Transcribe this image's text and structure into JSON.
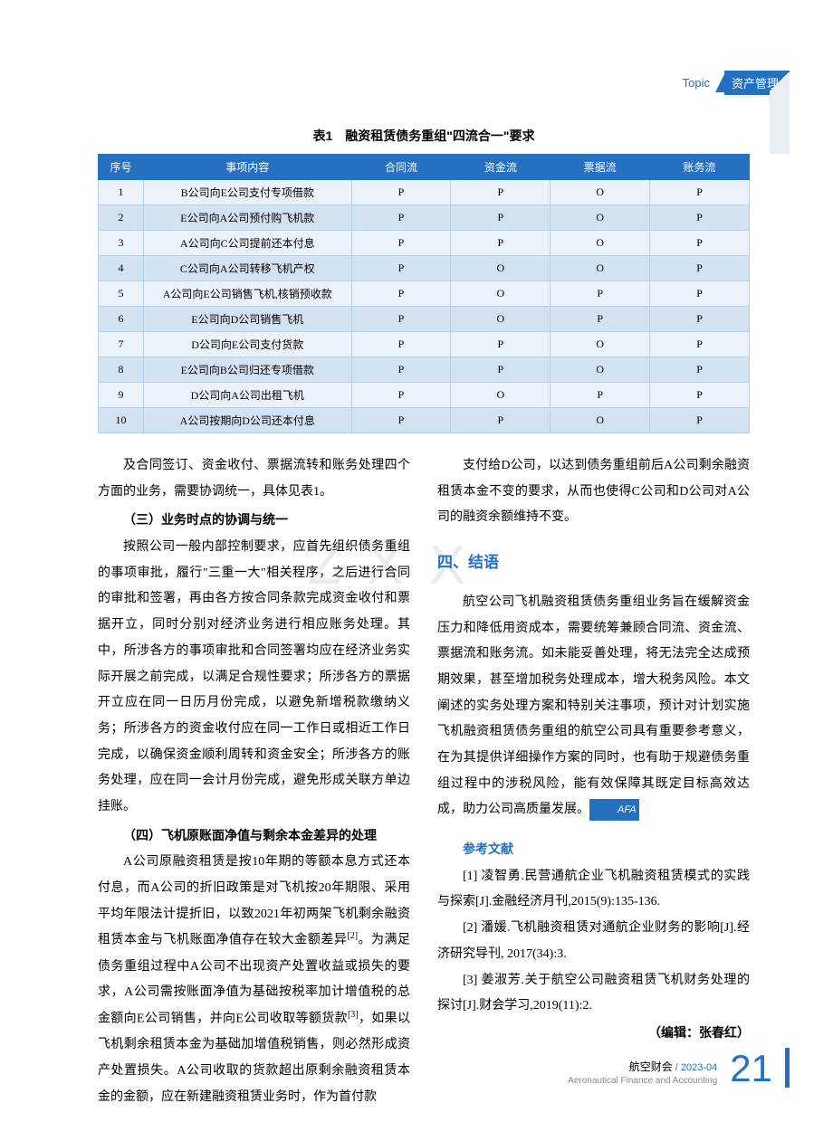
{
  "header": {
    "topic_label": "Topic",
    "category": "资产管理"
  },
  "table": {
    "caption": "表1　融资租赁债务重组\"四流合一\"要求",
    "columns": [
      "序号",
      "事项内容",
      "合同流",
      "资金流",
      "票据流",
      "账务流"
    ],
    "col_widths": [
      "50px",
      "230px",
      "110px",
      "110px",
      "110px",
      "110px"
    ],
    "rows": [
      [
        "1",
        "B公司向E公司支付专项借款",
        "P",
        "P",
        "O",
        "P"
      ],
      [
        "2",
        "E公司向A公司预付购飞机款",
        "P",
        "P",
        "O",
        "P"
      ],
      [
        "3",
        "A公司向C公司提前还本付息",
        "P",
        "P",
        "O",
        "P"
      ],
      [
        "4",
        "C公司向A公司转移飞机产权",
        "P",
        "O",
        "O",
        "P"
      ],
      [
        "5",
        "A公司向E公司销售飞机,核销预收款",
        "P",
        "O",
        "P",
        "P"
      ],
      [
        "6",
        "E公司向D公司销售飞机",
        "P",
        "O",
        "P",
        "P"
      ],
      [
        "7",
        "D公司向E公司支付货款",
        "P",
        "P",
        "O",
        "P"
      ],
      [
        "8",
        "E公司向B公司归还专项借款",
        "P",
        "P",
        "O",
        "P"
      ],
      [
        "9",
        "D公司向A公司出租飞机",
        "P",
        "O",
        "P",
        "P"
      ],
      [
        "10",
        "A公司按期向D公司还本付息",
        "P",
        "P",
        "O",
        "P"
      ]
    ],
    "header_bg": "#2570c0",
    "row_odd_bg": "#ecf2f9",
    "row_even_bg": "#d3e2f1",
    "border_color": "#b9cfe4"
  },
  "body": {
    "left": {
      "intro": "及合同签订、资金收付、票据流转和账务处理四个方面的业务，需要协调统一，具体见表1。",
      "h3_1": "（三）业务时点的协调与统一",
      "p3": "按照公司一般内部控制要求，应首先组织债务重组的事项审批，履行\"三重一大\"相关程序，之后进行合同的审批和签署，再由各方按合同条款完成资金收付和票据开立，同时分别对经济业务进行相应账务处理。其中，所涉各方的事项审批和合同签署均应在经济业务实际开展之前完成，以满足合规性要求；所涉各方的票据开立应在同一日历月份完成，以避免新增税款缴纳义务；所涉各方的资金收付应在同一工作日或相近工作日完成，以确保资金顺利周转和资金安全；所涉各方的账务处理，应在同一会计月份完成，避免形成关联方单边挂账。",
      "h3_2": "（四）飞机原账面净值与剩余本金差异的处理",
      "p4": "A公司原融资租赁是按10年期的等额本息方式还本付息，而A公司的折旧政策是对飞机按20年期限、采用平均年限法计提折旧，以致2021年初两架飞机剩余融资租赁本金与飞机账面净值存在较大金额差异[2]。为满足债务重组过程中A公司不出现资产处置收益或损失的要求，A公司需按账面净值为基础按税率加计增值税的总金额向E公司销售，并向E公司收取等额货款[3]，如果以飞机剩余租赁本金为基础加增值税销售，则必然形成资产处置损失。A公司收取的货款超出原剩余融资租赁本金的金额，应在新建融资租赁业务时，作为首付款"
    },
    "right": {
      "cont": "支付给D公司，以达到债务重组前后A公司剩余融资租赁本金不变的要求，从而也使得C公司和D公司对A公司的融资余额维持不变。",
      "section4": "四、结语",
      "p_concl": "航空公司飞机融资租赁债务重组业务旨在缓解资金压力和降低用资成本，需要统筹兼顾合同流、资金流、票据流和账务流。如未能妥善处理，将无法完全达成预期效果，甚至增加税务处理成本，增大税务风险。本文阐述的实务处理方案和特别关注事项，预计对计划实施飞机融资租赁债务重组的航空公司具有重要参考意义，在为其提供详细操作方案的同时，也有助于规避债务重组过程中的涉税风险，能有效保障其既定目标高效达成，助力公司高质量发展。",
      "afa": "AFA",
      "ref_heading": "参考文献",
      "refs": [
        "[1] 凌智勇.民营通航企业飞机融资租赁模式的实践与探索[J].金融经济月刊,2015(9):135-136.",
        "[2] 潘媛.飞机融资租赁对通航企业财务的影响[J].经济研究导刊, 2017(34):3.",
        "[3] 姜淑芳.关于航空公司融资租赁飞机财务处理的探讨[J].财会学习,2019(11):2."
      ],
      "editor": "（编辑：张春红）"
    }
  },
  "watermark": "Z X X",
  "footer": {
    "cn": "航空财会",
    "sep": " / ",
    "issue": "2023-04",
    "en": "Aeronautical Finance and Accounting",
    "page": "21"
  },
  "colors": {
    "accent": "#2570c0",
    "muted": "#888888"
  }
}
